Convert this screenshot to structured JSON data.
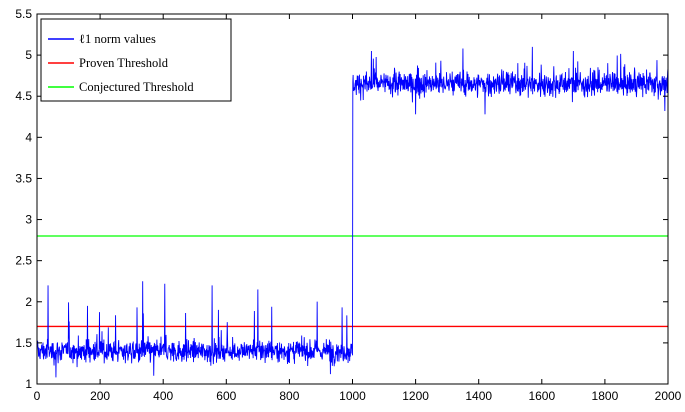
{
  "chart_data": {
    "type": "line",
    "title": "",
    "xlabel": "",
    "ylabel": "",
    "xlim": [
      0,
      2000
    ],
    "ylim": [
      1,
      5.5
    ],
    "grid": false,
    "legend_position": "top-left",
    "x_ticks": [
      "0",
      "200",
      "400",
      "600",
      "800",
      "1000",
      "1200",
      "1400",
      "1600",
      "1800",
      "2000"
    ],
    "y_ticks": [
      "1",
      "1.5",
      "2",
      "2.5",
      "3",
      "3.5",
      "4",
      "4.5",
      "5",
      "5.5"
    ],
    "series": [
      {
        "name": "ℓ1 norm values",
        "color": "#0000ff",
        "x_range": [
          1,
          2000
        ],
        "segments": [
          {
            "x_range": [
              1,
              1000
            ],
            "mean": 1.4,
            "spread": 0.13,
            "min": 1.08,
            "max": 2.26
          },
          {
            "x_range": [
              1001,
              2000
            ],
            "mean": 4.65,
            "spread": 0.14,
            "min": 4.25,
            "max": 5.1
          }
        ],
        "peaks": [
          {
            "x": 35,
            "y": 2.2
          },
          {
            "x": 160,
            "y": 1.95
          },
          {
            "x": 335,
            "y": 2.25
          },
          {
            "x": 405,
            "y": 2.22
          },
          {
            "x": 555,
            "y": 2.2
          },
          {
            "x": 700,
            "y": 2.15
          },
          {
            "x": 1060,
            "y": 5.05
          },
          {
            "x": 1350,
            "y": 5.08
          },
          {
            "x": 1570,
            "y": 5.1
          },
          {
            "x": 1700,
            "y": 5.05
          }
        ],
        "troughs": [
          {
            "x": 60,
            "y": 1.08
          },
          {
            "x": 370,
            "y": 1.1
          },
          {
            "x": 930,
            "y": 1.12
          },
          {
            "x": 1200,
            "y": 4.28
          },
          {
            "x": 1420,
            "y": 4.28
          },
          {
            "x": 1990,
            "y": 4.32
          }
        ]
      },
      {
        "name": "Proven Threshold",
        "color": "#ff0000",
        "x": [
          0,
          2000
        ],
        "y": [
          1.7,
          1.7
        ]
      },
      {
        "name": "Conjectured Threshold",
        "color": "#00ff00",
        "x": [
          0,
          2000
        ],
        "y": [
          2.8,
          2.8
        ]
      }
    ]
  }
}
